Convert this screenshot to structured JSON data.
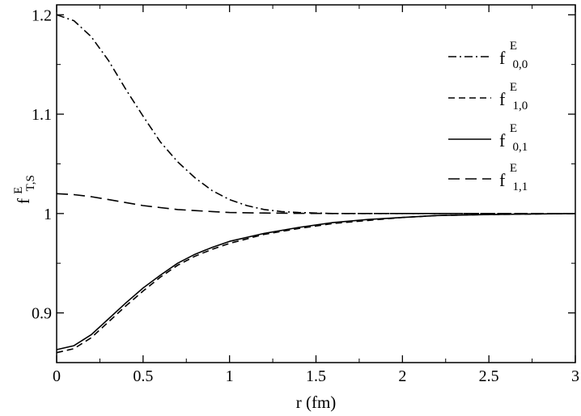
{
  "chart_data": {
    "type": "line",
    "xlabel": {
      "base": "r (fm)"
    },
    "ylabel": {
      "base": "f",
      "sup": "E",
      "sub": "T,S"
    },
    "xlim": [
      0,
      3
    ],
    "ylim": [
      0.85,
      1.21
    ],
    "xticks": [
      0,
      0.5,
      1,
      1.5,
      2,
      2.5,
      3
    ],
    "xtick_labels": [
      "0",
      "0.5",
      "1",
      "1.5",
      "2",
      "2.5",
      "3"
    ],
    "yticks": [
      0.9,
      1.0,
      1.1,
      1.2
    ],
    "ytick_labels": [
      "0.9",
      "1",
      "1.1",
      "1.2"
    ],
    "grid": false,
    "legend_position": "top-right",
    "series": [
      {
        "name": {
          "base": "f",
          "sup": "E",
          "sub": "0,0"
        },
        "style": "dash-dot",
        "color": "#000000",
        "x": [
          0,
          0.1,
          0.2,
          0.3,
          0.4,
          0.5,
          0.6,
          0.7,
          0.8,
          0.9,
          1.0,
          1.1,
          1.2,
          1.3,
          1.4,
          1.6,
          2.0,
          2.5,
          3.0
        ],
        "y": [
          1.2,
          1.194,
          1.178,
          1.154,
          1.125,
          1.098,
          1.072,
          1.052,
          1.036,
          1.023,
          1.014,
          1.008,
          1.004,
          1.002,
          1.001,
          1.0,
          1.0,
          1.0,
          1.0
        ]
      },
      {
        "name": {
          "base": "f",
          "sup": "E",
          "sub": "1,0"
        },
        "style": "short-dash",
        "color": "#000000",
        "x": [
          0,
          0.1,
          0.2,
          0.3,
          0.4,
          0.5,
          0.6,
          0.7,
          0.8,
          0.9,
          1.0,
          1.2,
          1.4,
          1.6,
          1.8,
          2.0,
          2.2,
          2.5,
          3.0
        ],
        "y": [
          0.86,
          0.864,
          0.875,
          0.891,
          0.907,
          0.922,
          0.936,
          0.948,
          0.957,
          0.964,
          0.97,
          0.979,
          0.985,
          0.99,
          0.993,
          0.996,
          0.998,
          0.999,
          1.0
        ]
      },
      {
        "name": {
          "base": "f",
          "sup": "E",
          "sub": "0,1"
        },
        "style": "solid",
        "color": "#000000",
        "x": [
          0,
          0.1,
          0.2,
          0.3,
          0.4,
          0.5,
          0.6,
          0.7,
          0.8,
          0.9,
          1.0,
          1.2,
          1.4,
          1.6,
          1.8,
          2.0,
          2.2,
          2.5,
          3.0
        ],
        "y": [
          0.863,
          0.867,
          0.878,
          0.894,
          0.91,
          0.925,
          0.938,
          0.95,
          0.959,
          0.966,
          0.972,
          0.98,
          0.986,
          0.991,
          0.994,
          0.996,
          0.998,
          0.999,
          1.0
        ]
      },
      {
        "name": {
          "base": "f",
          "sup": "E",
          "sub": "1,1"
        },
        "style": "long-dash",
        "color": "#000000",
        "x": [
          0,
          0.1,
          0.2,
          0.3,
          0.4,
          0.5,
          0.6,
          0.7,
          0.8,
          0.9,
          1.0,
          1.2,
          1.4,
          1.6,
          2.0,
          2.5,
          3.0
        ],
        "y": [
          1.02,
          1.019,
          1.017,
          1.014,
          1.011,
          1.008,
          1.006,
          1.004,
          1.003,
          1.002,
          1.001,
          1.0005,
          1.0002,
          1.0,
          1.0,
          1.0,
          1.0
        ]
      }
    ]
  }
}
